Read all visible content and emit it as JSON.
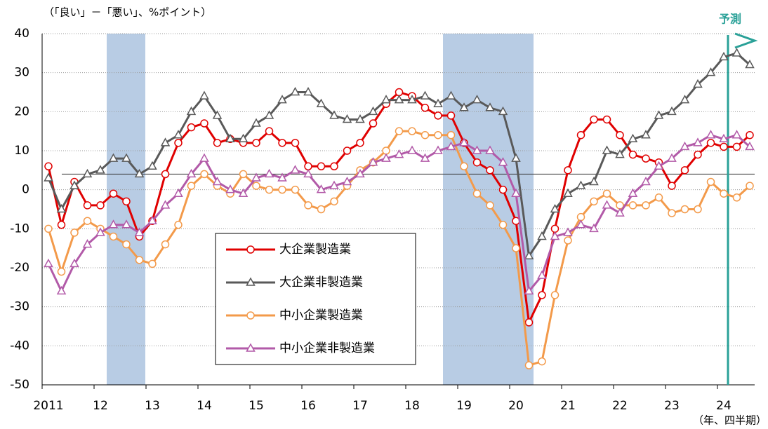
{
  "chart_data": {
    "type": "line",
    "y_label": "（「良い」－「悪い」、%ポイント）",
    "x_label": "（年、四半期）",
    "forecast_label": "予測",
    "categories": [
      "2011",
      null,
      null,
      null,
      "12",
      null,
      null,
      null,
      "13",
      null,
      null,
      null,
      "14",
      null,
      null,
      null,
      "15",
      null,
      null,
      null,
      "16",
      null,
      null,
      null,
      "17",
      null,
      null,
      null,
      "18",
      null,
      null,
      null,
      "19",
      null,
      null,
      null,
      "20",
      null,
      null,
      null,
      "21",
      null,
      null,
      null,
      "22",
      null,
      null,
      null,
      "23",
      null,
      null,
      null,
      "24",
      null,
      null
    ],
    "ylim": [
      -50,
      40
    ],
    "yticks": [
      40,
      30,
      20,
      10,
      0,
      -10,
      -20,
      -30,
      -40,
      -50
    ],
    "grid": true,
    "reference_line": 4,
    "series": [
      {
        "name": "大企業製造業",
        "color": "#e00000",
        "marker": "circle",
        "values": [
          6,
          -9,
          2,
          -4,
          -4,
          -1,
          -3,
          -12,
          -8,
          4,
          12,
          16,
          17,
          12,
          13,
          12,
          12,
          15,
          12,
          12,
          6,
          6,
          6,
          10,
          12,
          17,
          22,
          25,
          24,
          21,
          19,
          19,
          12,
          7,
          5,
          0,
          -8,
          -34,
          -27,
          -10,
          5,
          14,
          18,
          18,
          14,
          9,
          8,
          7,
          1,
          5,
          9,
          12,
          11,
          11,
          14
        ]
      },
      {
        "name": "大企業非製造業",
        "color": "#595959",
        "marker": "triangle",
        "values": [
          3,
          -5,
          1,
          4,
          5,
          8,
          8,
          4,
          6,
          12,
          14,
          20,
          24,
          19,
          13,
          13,
          17,
          19,
          23,
          25,
          25,
          22,
          19,
          18,
          18,
          20,
          23,
          23,
          23,
          24,
          22,
          24,
          21,
          23,
          21,
          20,
          8,
          -17,
          -12,
          -5,
          -1,
          1,
          2,
          10,
          9,
          13,
          14,
          19,
          20,
          23,
          27,
          30,
          34,
          35,
          32
        ]
      },
      {
        "name": "中小企業製造業",
        "color": "#f39a4a",
        "marker": "circle",
        "values": [
          -10,
          -21,
          -11,
          -8,
          -10,
          -12,
          -14,
          -18,
          -19,
          -14,
          -9,
          1,
          4,
          1,
          -1,
          4,
          1,
          0,
          0,
          0,
          -4,
          -5,
          -3,
          1,
          5,
          7,
          10,
          15,
          15,
          14,
          14,
          14,
          6,
          -1,
          -4,
          -9,
          -15,
          -45,
          -44,
          -27,
          -13,
          -7,
          -3,
          -1,
          -4,
          -4,
          -4,
          -2,
          -6,
          -5,
          -5,
          2,
          -1,
          -2,
          1
        ]
      },
      {
        "name": "中小企業非製造業",
        "color": "#b25aa8",
        "marker": "triangle",
        "values": [
          -19,
          -26,
          -19,
          -14,
          -11,
          -9,
          -9,
          -11,
          -8,
          -4,
          -1,
          4,
          8,
          2,
          0,
          -1,
          3,
          4,
          3,
          5,
          4,
          0,
          1,
          2,
          4,
          7,
          8,
          9,
          10,
          8,
          10,
          11,
          12,
          10,
          10,
          7,
          -1,
          -26,
          -22,
          -12,
          -11,
          -9,
          -10,
          -4,
          -6,
          -1,
          2,
          6,
          8,
          11,
          12,
          14,
          13,
          14,
          11
        ]
      }
    ]
  }
}
